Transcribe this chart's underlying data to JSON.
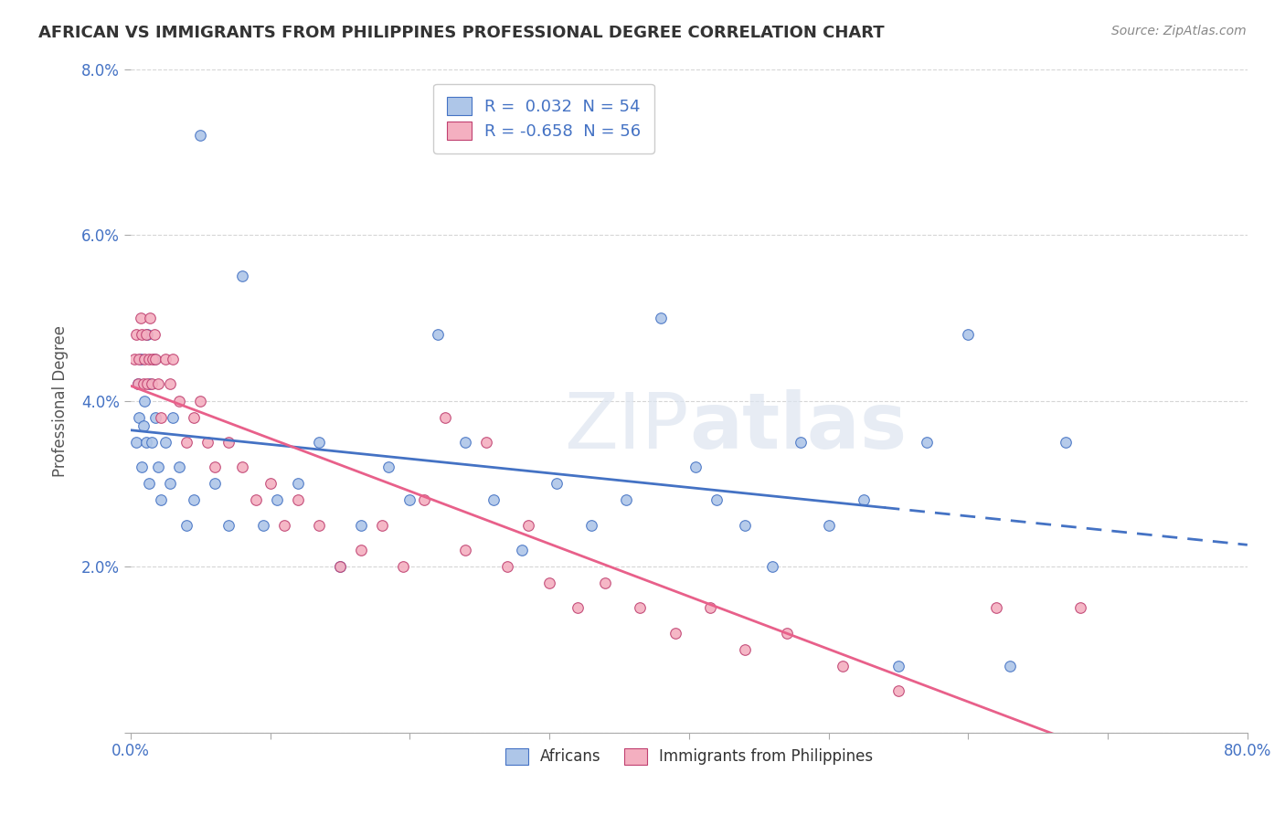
{
  "title": "AFRICAN VS IMMIGRANTS FROM PHILIPPINES PROFESSIONAL DEGREE CORRELATION CHART",
  "source": "Source: ZipAtlas.com",
  "ylabel": "Professional Degree",
  "xlim": [
    0.0,
    80.0
  ],
  "ylim": [
    0.0,
    8.0
  ],
  "yticks": [
    0.0,
    2.0,
    4.0,
    6.0,
    8.0
  ],
  "xticks": [
    0.0,
    10.0,
    20.0,
    30.0,
    40.0,
    50.0,
    60.0,
    70.0,
    80.0
  ],
  "r1": 0.032,
  "n1": 54,
  "r2": -0.658,
  "n2": 56,
  "color_african": "#aec6e8",
  "color_philippines": "#f4afc0",
  "color_line_african": "#4472c4",
  "color_line_philippines": "#e8608a",
  "dash_start_x": 54.0,
  "africans_x": [
    0.4,
    0.5,
    0.6,
    0.7,
    0.8,
    0.9,
    1.0,
    1.1,
    1.2,
    1.3,
    1.4,
    1.5,
    1.7,
    1.8,
    2.0,
    2.2,
    2.5,
    2.8,
    3.0,
    3.5,
    4.0,
    4.5,
    5.0,
    6.0,
    7.0,
    8.0,
    9.5,
    10.5,
    12.0,
    13.5,
    15.0,
    16.5,
    18.5,
    20.0,
    22.0,
    24.0,
    26.0,
    28.0,
    30.5,
    33.0,
    35.5,
    38.0,
    40.5,
    42.0,
    44.0,
    46.0,
    48.0,
    50.0,
    52.5,
    55.0,
    57.0,
    60.0,
    63.0,
    67.0
  ],
  "africans_y": [
    3.5,
    4.2,
    3.8,
    4.5,
    3.2,
    3.7,
    4.0,
    3.5,
    4.8,
    3.0,
    4.2,
    3.5,
    4.5,
    3.8,
    3.2,
    2.8,
    3.5,
    3.0,
    3.8,
    3.2,
    2.5,
    2.8,
    7.2,
    3.0,
    2.5,
    5.5,
    2.5,
    2.8,
    3.0,
    3.5,
    2.0,
    2.5,
    3.2,
    2.8,
    4.8,
    3.5,
    2.8,
    2.2,
    3.0,
    2.5,
    2.8,
    5.0,
    3.2,
    2.8,
    2.5,
    2.0,
    3.5,
    2.5,
    2.8,
    0.8,
    3.5,
    4.8,
    0.8,
    3.5
  ],
  "philippines_x": [
    0.3,
    0.4,
    0.5,
    0.6,
    0.7,
    0.8,
    0.9,
    1.0,
    1.1,
    1.2,
    1.3,
    1.4,
    1.5,
    1.6,
    1.7,
    1.8,
    2.0,
    2.2,
    2.5,
    2.8,
    3.0,
    3.5,
    4.0,
    4.5,
    5.0,
    5.5,
    6.0,
    7.0,
    8.0,
    9.0,
    10.0,
    11.0,
    12.0,
    13.5,
    15.0,
    16.5,
    18.0,
    19.5,
    21.0,
    22.5,
    24.0,
    25.5,
    27.0,
    28.5,
    30.0,
    32.0,
    34.0,
    36.5,
    39.0,
    41.5,
    44.0,
    47.0,
    51.0,
    55.0,
    62.0,
    68.0
  ],
  "philippines_y": [
    4.5,
    4.8,
    4.2,
    4.5,
    5.0,
    4.8,
    4.2,
    4.5,
    4.8,
    4.2,
    4.5,
    5.0,
    4.2,
    4.5,
    4.8,
    4.5,
    4.2,
    3.8,
    4.5,
    4.2,
    4.5,
    4.0,
    3.5,
    3.8,
    4.0,
    3.5,
    3.2,
    3.5,
    3.2,
    2.8,
    3.0,
    2.5,
    2.8,
    2.5,
    2.0,
    2.2,
    2.5,
    2.0,
    2.8,
    3.8,
    2.2,
    3.5,
    2.0,
    2.5,
    1.8,
    1.5,
    1.8,
    1.5,
    1.2,
    1.5,
    1.0,
    1.2,
    0.8,
    0.5,
    1.5,
    1.5
  ]
}
